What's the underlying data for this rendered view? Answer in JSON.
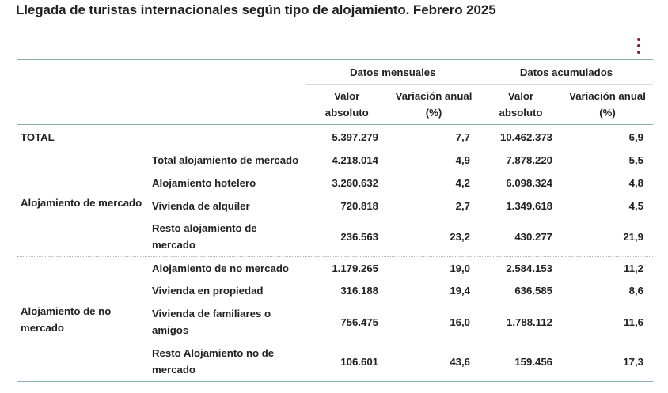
{
  "title": "Llegada de turistas internacionales según tipo de alojamiento. Febrero 2025",
  "menu_icon": "kebab-menu-icon",
  "header": {
    "group_monthly": "Datos mensuales",
    "group_cumulative": "Datos acumulados",
    "col_valor_1": "Valor",
    "col_valor_2": "absoluto",
    "col_var_1": "Variación anual",
    "col_var_2": "(%)"
  },
  "rows": {
    "total": {
      "label": "TOTAL",
      "m_val": "5.397.279",
      "m_var": "7,7",
      "a_val": "10.462.373",
      "a_var": "6,9"
    },
    "mercado": {
      "group_label": "Alojamiento de mercado",
      "r1": {
        "label": "Total alojamiento de mercado",
        "m_val": "4.218.014",
        "m_var": "4,9",
        "a_val": "7.878.220",
        "a_var": "5,5"
      },
      "r2": {
        "label": "Alojamiento hotelero",
        "m_val": "3.260.632",
        "m_var": "4,2",
        "a_val": "6.098.324",
        "a_var": "4,8"
      },
      "r3": {
        "label": "Vivienda de alquiler",
        "m_val": "720.818",
        "m_var": "2,7",
        "a_val": "1.349.618",
        "a_var": "4,5"
      },
      "r4": {
        "label_1": "Resto alojamiento de",
        "label_2": "mercado",
        "m_val": "236.563",
        "m_var": "23,2",
        "a_val": "430.277",
        "a_var": "21,9"
      }
    },
    "no_mercado": {
      "group_label_1": "Alojamiento de no",
      "group_label_2": "mercado",
      "r1": {
        "label": "Alojamiento de no mercado",
        "m_val": "1.179.265",
        "m_var": "19,0",
        "a_val": "2.584.153",
        "a_var": "11,2"
      },
      "r2": {
        "label": "Vivienda en propiedad",
        "m_val": "316.188",
        "m_var": "19,4",
        "a_val": "636.585",
        "a_var": "8,6"
      },
      "r3": {
        "label_1": "Vivienda de familiares o",
        "label_2": "amigos",
        "m_val": "756.475",
        "m_var": "16,0",
        "a_val": "1.788.112",
        "a_var": "11,6"
      },
      "r4": {
        "label_1": "Resto Alojamiento no de",
        "label_2": "mercado",
        "m_val": "106.601",
        "m_var": "43,6",
        "a_val": "159.456",
        "a_var": "17,3"
      }
    }
  }
}
